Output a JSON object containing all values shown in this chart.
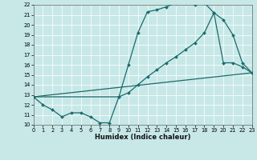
{
  "xlabel": "Humidex (Indice chaleur)",
  "bg_color": "#c8e8e8",
  "line_color": "#1a6b6b",
  "markersize": 2.0,
  "linewidth": 0.9,
  "xlim": [
    0,
    23
  ],
  "ylim": [
    10,
    22
  ],
  "xticks": [
    0,
    1,
    2,
    3,
    4,
    5,
    6,
    7,
    8,
    9,
    10,
    11,
    12,
    13,
    14,
    15,
    16,
    17,
    18,
    19,
    20,
    21,
    22,
    23
  ],
  "yticks": [
    10,
    11,
    12,
    13,
    14,
    15,
    16,
    17,
    18,
    19,
    20,
    21,
    22
  ],
  "line1_x": [
    0,
    1,
    2,
    3,
    4,
    5,
    6,
    7,
    8,
    9,
    10,
    11,
    12,
    13,
    14,
    15,
    16,
    17,
    18,
    19,
    20,
    21,
    22,
    23
  ],
  "line1_y": [
    12.8,
    12.0,
    11.5,
    10.8,
    11.2,
    11.2,
    10.8,
    10.2,
    10.2,
    12.8,
    16.0,
    19.2,
    21.3,
    21.5,
    21.8,
    22.2,
    22.2,
    22.0,
    22.2,
    21.2,
    16.2,
    16.2,
    15.8,
    15.2
  ],
  "line2_x": [
    0,
    9,
    10,
    11,
    12,
    13,
    14,
    15,
    16,
    17,
    18,
    19,
    20,
    21,
    22,
    23
  ],
  "line2_y": [
    12.8,
    12.8,
    13.2,
    14.0,
    14.8,
    15.5,
    16.2,
    16.8,
    17.5,
    18.2,
    19.2,
    21.2,
    20.5,
    19.0,
    16.2,
    15.2
  ],
  "line3_x": [
    0,
    23
  ],
  "line3_y": [
    12.8,
    15.2
  ]
}
